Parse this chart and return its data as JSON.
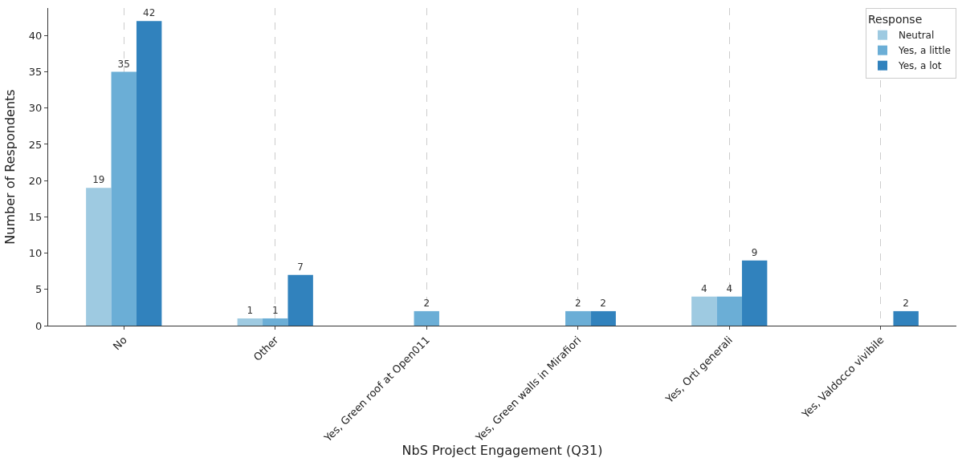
{
  "chart_data": {
    "type": "bar",
    "xlabel": "NbS Project Engagement (Q31)",
    "ylabel": "Number of Respondents",
    "legend_title": "Response",
    "categories": [
      "No",
      "Other",
      "Yes, Green roof at Open011",
      "Yes, Green walls in Mirafiori",
      "Yes, Orti generali",
      "Yes, Valdocco vivibile"
    ],
    "series": [
      {
        "name": "Neutral",
        "color": "#9ecae1",
        "values": [
          19,
          1,
          null,
          null,
          4,
          null
        ]
      },
      {
        "name": "Yes, a little",
        "color": "#6baed6",
        "values": [
          35,
          1,
          2,
          2,
          4,
          null
        ]
      },
      {
        "name": "Yes, a lot",
        "color": "#3182bd",
        "values": [
          42,
          7,
          null,
          2,
          9,
          2
        ]
      }
    ],
    "ylim": [
      0,
      43.8
    ],
    "yticks": [
      0,
      5,
      10,
      15,
      20,
      25,
      30,
      35,
      40
    ],
    "grid": "x",
    "legend": "top right",
    "data_labels": true
  }
}
